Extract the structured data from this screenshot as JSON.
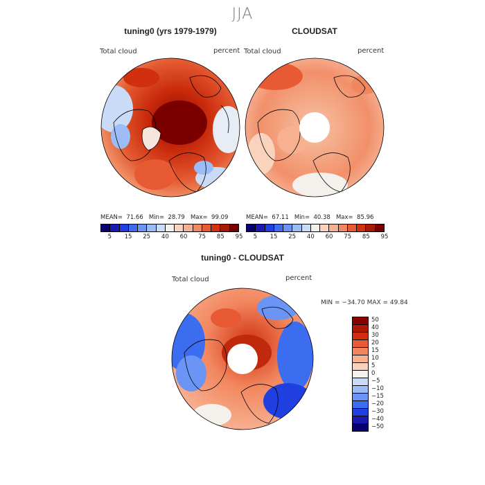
{
  "title": "JJA",
  "panels": [
    {
      "id": "model",
      "title": "tuning0 (yrs 1979-1979)",
      "left_label": "Total cloud",
      "right_label": "percent",
      "stats": {
        "mean": "71.66",
        "min": "28.79",
        "max": "99.09"
      },
      "pole_hole": false
    },
    {
      "id": "obs",
      "title": "CLOUDSAT",
      "left_label": "Total cloud",
      "right_label": "percent",
      "stats": {
        "mean": "67.11",
        "min": "40.38",
        "max": "85.96"
      },
      "pole_hole": true
    }
  ],
  "stat_labels": {
    "mean": "MEAN=",
    "min": "Min=",
    "max": "Max="
  },
  "colorbar_abs": {
    "colors": [
      "#08006e",
      "#1a1ab0",
      "#1f3fe0",
      "#3c6cf0",
      "#6a95f5",
      "#9bbcf7",
      "#c9dbf7",
      "#f4f0ec",
      "#f9d3bd",
      "#f7b191",
      "#f2875f",
      "#e85a33",
      "#d0300e",
      "#a61a05",
      "#780000"
    ],
    "labels": [
      "5",
      "15",
      "25",
      "40",
      "60",
      "75",
      "85",
      "95"
    ]
  },
  "diff": {
    "title": "tuning0 - CLOUDSAT",
    "left_label": "Total cloud",
    "right_label": "percent",
    "minmax_text": "MIN = −34.70 MAX =  49.84"
  },
  "colorbar_diff": {
    "colors": [
      "#8a0000",
      "#b01806",
      "#d0300e",
      "#e85a33",
      "#f2875f",
      "#f7b191",
      "#f9d3bd",
      "#f4f0ec",
      "#c9dbf7",
      "#9bbcf7",
      "#6a95f5",
      "#3c6cf0",
      "#1f3fe0",
      "#1a1ab0",
      "#08006e"
    ],
    "labels": [
      "50",
      "40",
      "30",
      "20",
      "15",
      "10",
      "5",
      "0",
      "−5",
      "−10",
      "−15",
      "−20",
      "−30",
      "−40",
      "−50"
    ]
  }
}
